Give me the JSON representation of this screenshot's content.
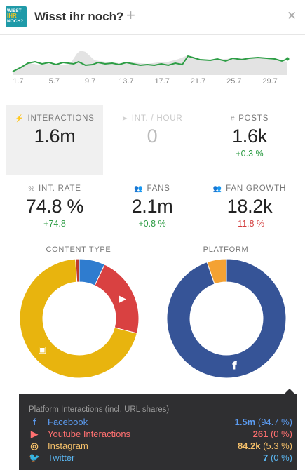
{
  "header": {
    "logo": {
      "line1": "WISST",
      "line2": "IHR",
      "line3": "NOCH?"
    },
    "title": "Wisst ihr noch?",
    "add_icon": "plus-icon",
    "close_icon": "close-icon"
  },
  "sparkline": {
    "type": "area",
    "x_ticks": [
      "1.7",
      "5.7",
      "9.7",
      "13.7",
      "17.7",
      "21.7",
      "25.7",
      "29.7"
    ],
    "line_color": "#2e9e46",
    "area_color": "#e3e3e3"
  },
  "stats": {
    "interactions": {
      "label": "INTERACTIONS",
      "value": "1.6m",
      "icon": "bolt-icon"
    },
    "int_hour": {
      "label": "INT. / HOUR",
      "value": "0",
      "icon": "rocket-icon"
    },
    "posts": {
      "label": "POSTS",
      "value": "1.6k",
      "change": "+0.3 %",
      "icon": "hash-icon"
    },
    "int_rate": {
      "label": "INT. RATE",
      "value": "74.8 %",
      "change": "+74.8",
      "icon": "percent-icon"
    },
    "fans": {
      "label": "FANS",
      "value": "2.1m",
      "change": "+0.8 %",
      "icon": "users-icon"
    },
    "fan_growth": {
      "label": "FAN GROWTH",
      "value": "18.2k",
      "change": "-11.8 %",
      "icon": "users-icon"
    }
  },
  "chart_data": [
    {
      "type": "pie",
      "title": "CONTENT TYPE",
      "slices": [
        {
          "value": 7,
          "color": "#2f7ccf",
          "icon": "link-icon"
        },
        {
          "value": 22,
          "color": "#d94141",
          "icon": "youtube-icon"
        },
        {
          "value": 70,
          "color": "#e8b40e",
          "icon": "image-icon"
        },
        {
          "value": 1,
          "color": "#c0392b",
          "icon": ""
        }
      ]
    },
    {
      "type": "pie",
      "title": "PLATFORM",
      "slices": [
        {
          "value": 94.7,
          "color": "#365497",
          "icon": "facebook-icon"
        },
        {
          "value": 5.3,
          "color": "#f4a233",
          "icon": "instagram-icon"
        }
      ]
    }
  ],
  "tooltip": {
    "title": "Platform Interactions (incl. URL shares)",
    "rows": [
      {
        "name": "Facebook",
        "value": "1.5m",
        "pct": "(94.7 %)",
        "color": "#5b9bf0",
        "icon": "facebook-icon",
        "glyph": "f"
      },
      {
        "name": "Youtube Interactions",
        "value": "261",
        "pct": "(0 %)",
        "color": "#ff7070",
        "icon": "youtube-icon",
        "glyph": "▶"
      },
      {
        "name": "Instagram",
        "value": "84.2k",
        "pct": "(5.3 %)",
        "color": "#f5c06a",
        "icon": "instagram-icon",
        "glyph": "◎"
      },
      {
        "name": "Twitter",
        "value": "7",
        "pct": "(0 %)",
        "color": "#5bb6f0",
        "icon": "twitter-icon",
        "glyph": "🐦"
      }
    ]
  }
}
